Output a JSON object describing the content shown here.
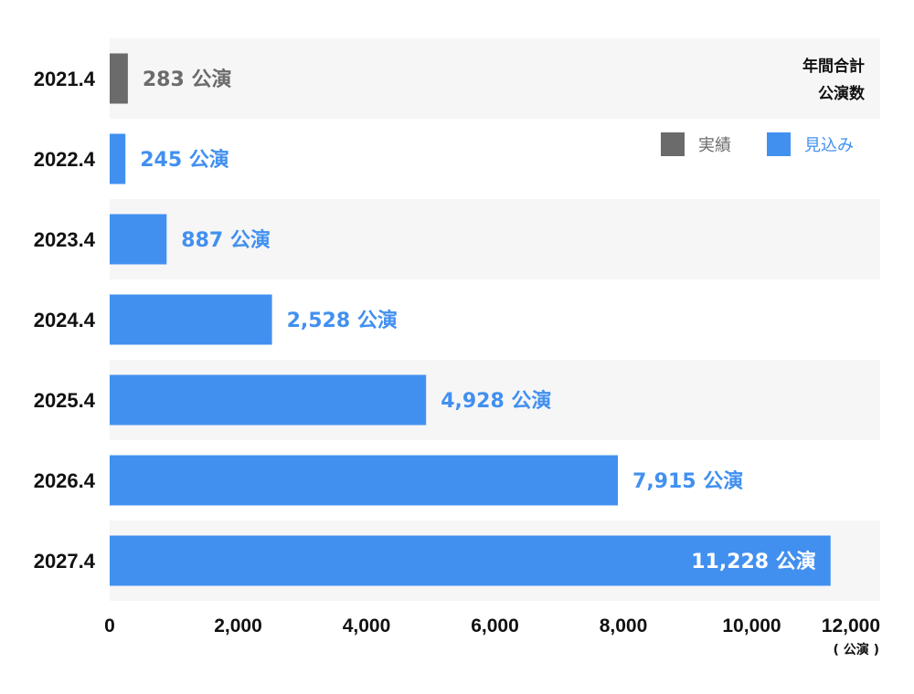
{
  "chart_data": {
    "type": "bar",
    "orientation": "horizontal",
    "title_lines": [
      "年間合計",
      "公演数"
    ],
    "categories": [
      "2021.4",
      "2022.4",
      "2023.4",
      "2024.4",
      "2025.4",
      "2026.4",
      "2027.4"
    ],
    "values": [
      283,
      245,
      887,
      2528,
      4928,
      7915,
      11228
    ],
    "value_labels": [
      "283 公演",
      "245 公演",
      "887 公演",
      "2,528 公演",
      "4,928 公演",
      "7,915 公演",
      "11,228 公演"
    ],
    "series_kind": [
      "actual",
      "forecast",
      "forecast",
      "forecast",
      "forecast",
      "forecast",
      "forecast"
    ],
    "legend": {
      "placement": "top-right",
      "items": [
        {
          "label": "実績",
          "kind": "actual"
        },
        {
          "label": "見込み",
          "kind": "forecast"
        }
      ]
    },
    "xlim": [
      0,
      12000
    ],
    "xticks": [
      0,
      2000,
      4000,
      6000,
      8000,
      10000,
      12000
    ],
    "xtick_labels": [
      "0",
      "2,000",
      "4,000",
      "6,000",
      "8,000",
      "10,000",
      "12,000"
    ],
    "x_unit": "( 公演 )",
    "colors": {
      "actual": "#6b6b6b",
      "forecast": "#4190f0",
      "band_alt": "#f6f6f6",
      "label_inside": "#ffffff"
    }
  }
}
